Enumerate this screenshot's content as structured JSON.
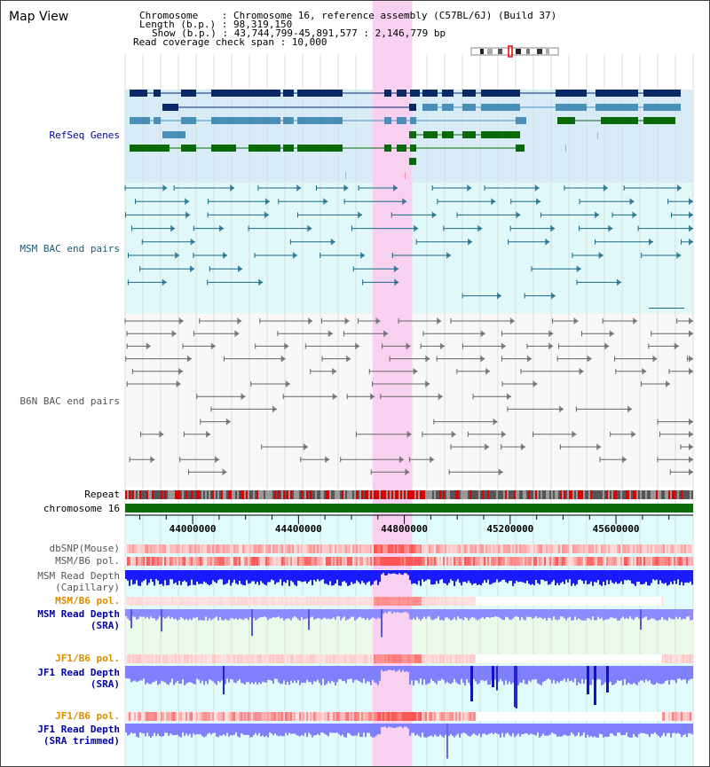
{
  "app": {
    "title": "Map View"
  },
  "info": {
    "chromosome_line": "Chromosome    : Chromosome 16, reference assembly (C57BL/6J) (Build 37)",
    "length_line": "Length (b.p.) : 98,319,150",
    "show_line": "Show (b.p.) : 43,744,799-45,891,577 : 2,146,779 bp",
    "coverage_line": "Read coverage check span : 10,000"
  },
  "tracks": {
    "refseq": "RefSeq Genes",
    "msm_bac": "MSM BAC end pairs",
    "b6n_bac": "B6N BAC end pairs",
    "repeat": "Repeat",
    "chromosome": "chromosome 16",
    "dbsnp": "dbSNP(Mouse)",
    "msm_b6_pol": "MSM/B6 pol.",
    "msm_depth_cap_1": "MSM Read Depth",
    "msm_depth_cap_2": "(Capillary)",
    "msm_b6_pol_sra": "MSM/B6 pol.",
    "msm_depth_sra_1": "MSM Read Depth",
    "msm_depth_sra_2": "(SRA)",
    "jf1_b6_pol": "JF1/B6 pol.",
    "jf1_depth_1": "JF1 Read Depth",
    "jf1_depth_2": "(SRA)",
    "jf1_b6_pol_2": "JF1/B6 pol.",
    "jf1_trim_1": "JF1 Read Depth",
    "jf1_trim_2": "(SRA trimmed)"
  },
  "axis": {
    "ticks": [
      "44000000",
      "44400000",
      "44800000",
      "45200000",
      "45600000"
    ],
    "tick_values": [
      44000000,
      44400000,
      44800000,
      45200000,
      45600000
    ],
    "range": [
      43744799,
      45891577
    ]
  },
  "highlight_range": [
    44680000,
    44830000
  ],
  "colors": {
    "refseq_dark": "#0a2a66",
    "refseq_mid": "#4a8fb8",
    "refseq_green": "#0a6a0a",
    "msm_bac": "#1a6a8a",
    "b6n_bac": "#666666",
    "highlight": "#f8d0f0",
    "chromosome": "#0b6b0b",
    "depth_blue": "#0000ee",
    "depth_light": "#8888ff",
    "pol_label": "#e08a00",
    "label_blue": "#0000aa"
  }
}
